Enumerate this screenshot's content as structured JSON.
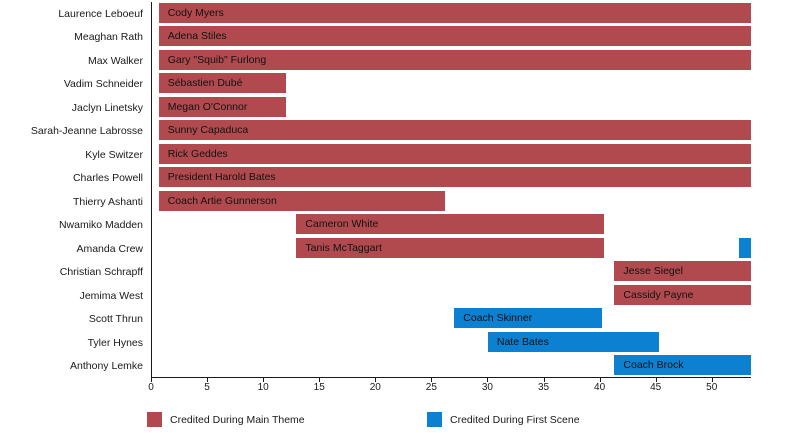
{
  "chart_data": {
    "type": "bar",
    "variant": "horizontal-gantt-timeline",
    "title": "",
    "xlabel": "",
    "ylabel": "",
    "xlim": [
      0,
      53.5
    ],
    "xticks": [
      0,
      5,
      10,
      15,
      20,
      25,
      30,
      35,
      40,
      45,
      50
    ],
    "grid": false,
    "legend_position": "bottom",
    "legend": [
      {
        "key": "main_theme",
        "label": "Credited During Main Theme",
        "color": "#b04a4e"
      },
      {
        "key": "first_scene",
        "label": "Credited During First Scene",
        "color": "#0c80d1"
      }
    ],
    "rows": [
      {
        "actor": "Laurence Leboeuf",
        "character": "Cody Myers",
        "segments": [
          {
            "start": 0.6,
            "end": 53.5,
            "type": "main_theme",
            "label": "Cody Myers"
          }
        ]
      },
      {
        "actor": "Meaghan Rath",
        "character": "Adena Stiles",
        "segments": [
          {
            "start": 0.6,
            "end": 53.5,
            "type": "main_theme",
            "label": "Adena Stiles"
          }
        ]
      },
      {
        "actor": "Max Walker",
        "character": "Gary \"Squib\" Furlong",
        "segments": [
          {
            "start": 0.6,
            "end": 53.5,
            "type": "main_theme",
            "label": "Gary \"Squib\" Furlong"
          }
        ]
      },
      {
        "actor": "Vadim Schneider",
        "character": "Sébastien Dubé",
        "segments": [
          {
            "start": 0.6,
            "end": 12.0,
            "type": "main_theme",
            "label": "Sébastien Dubé"
          }
        ]
      },
      {
        "actor": "Jaclyn Linetsky",
        "character": "Megan O'Connor",
        "segments": [
          {
            "start": 0.6,
            "end": 12.0,
            "type": "main_theme",
            "label": "Megan O'Connor"
          }
        ]
      },
      {
        "actor": "Sarah-Jeanne Labrosse",
        "character": "Sunny Capaduca",
        "segments": [
          {
            "start": 0.6,
            "end": 53.5,
            "type": "main_theme",
            "label": "Sunny Capaduca"
          }
        ]
      },
      {
        "actor": "Kyle Switzer",
        "character": "Rick Geddes",
        "segments": [
          {
            "start": 0.6,
            "end": 53.5,
            "type": "main_theme",
            "label": "Rick Geddes"
          }
        ]
      },
      {
        "actor": "Charles Powell",
        "character": "President Harold Bates",
        "segments": [
          {
            "start": 0.6,
            "end": 53.5,
            "type": "main_theme",
            "label": "President Harold Bates"
          }
        ]
      },
      {
        "actor": "Thierry Ashanti",
        "character": "Coach Artie Gunnerson",
        "segments": [
          {
            "start": 0.6,
            "end": 26.2,
            "type": "main_theme",
            "label": "Coach Artie Gunnerson"
          }
        ]
      },
      {
        "actor": "Nwamiko Madden",
        "character": "Cameron White",
        "segments": [
          {
            "start": 12.9,
            "end": 40.4,
            "type": "main_theme",
            "label": "Cameron White"
          }
        ]
      },
      {
        "actor": "Amanda Crew",
        "character": "Tanis McTaggart",
        "segments": [
          {
            "start": 12.9,
            "end": 40.4,
            "type": "main_theme",
            "label": "Tanis McTaggart"
          },
          {
            "start": 52.4,
            "end": 53.5,
            "type": "first_scene",
            "label": ""
          }
        ]
      },
      {
        "actor": "Christian Schrapff",
        "character": "Jesse Siegel",
        "segments": [
          {
            "start": 41.3,
            "end": 53.5,
            "type": "main_theme",
            "label": "Jesse Siegel"
          }
        ]
      },
      {
        "actor": "Jemima West",
        "character": "Cassidy Payne",
        "segments": [
          {
            "start": 41.3,
            "end": 53.5,
            "type": "main_theme",
            "label": "Cassidy Payne"
          }
        ]
      },
      {
        "actor": "Scott Thrun",
        "character": "Coach Skinner",
        "segments": [
          {
            "start": 27.0,
            "end": 40.2,
            "type": "first_scene",
            "label": "Coach Skinner"
          }
        ]
      },
      {
        "actor": "Tyler Hynes",
        "character": "Nate Bates",
        "segments": [
          {
            "start": 30.0,
            "end": 45.3,
            "type": "first_scene",
            "label": "Nate Bates"
          }
        ]
      },
      {
        "actor": "Anthony Lemke",
        "character": "Coach Brock",
        "segments": [
          {
            "start": 41.3,
            "end": 53.5,
            "type": "first_scene",
            "label": "Coach Brock"
          }
        ]
      }
    ]
  },
  "layout_colors": {
    "background": "#ffffff",
    "axis": "#1a1a1a",
    "text": "#1a1a1a"
  },
  "legend_items": {
    "main_theme_label": "Credited During Main Theme",
    "first_scene_label": "Credited During First Scene"
  }
}
